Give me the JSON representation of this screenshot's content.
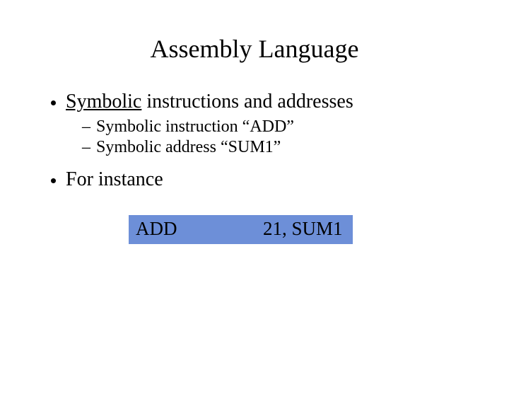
{
  "slide": {
    "title": "Assembly Language",
    "title_fontsize": 36,
    "bullets": [
      {
        "underlined_word": "Symbolic",
        "rest": " instructions and addresses",
        "fontsize": 28,
        "sub": [
          {
            "text": "Symbolic instruction “ADD”",
            "fontsize": 24
          },
          {
            "text": "Symbolic address “SUM1”",
            "fontsize": 24
          }
        ]
      },
      {
        "text": "For instance",
        "fontsize": 28,
        "sub": []
      }
    ],
    "example": {
      "mnemonic": "ADD",
      "operands": "21, SUM1",
      "fontsize": 27,
      "box_color": "#6d8fd8",
      "text_color": "#000000"
    },
    "colors": {
      "background": "#ffffff",
      "text": "#000000"
    }
  }
}
